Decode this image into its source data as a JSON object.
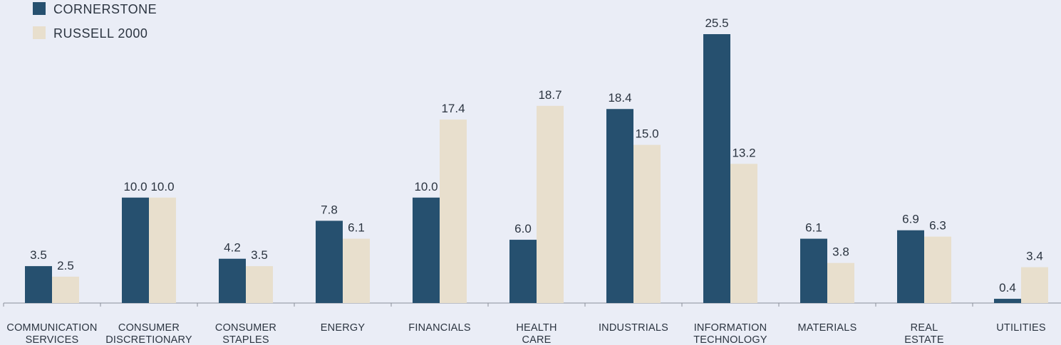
{
  "colors": {
    "cornerstone": "#26506f",
    "russell": "#e8dfcd",
    "axis": "#8a8f99",
    "text": "#2b3440"
  },
  "legend": [
    {
      "name": "CORNERSTONE",
      "color": "#26506f"
    },
    {
      "name": "RUSSELL 2000",
      "color": "#e8dfcd"
    }
  ],
  "chart_data": {
    "type": "bar",
    "title": "",
    "xlabel": "",
    "ylabel": "",
    "ylim": [
      0,
      25.5
    ],
    "grid": false,
    "legend_position": "top-left",
    "categories": [
      "COMMUNICATION SERVICES",
      "CONSUMER DISCRETIONARY",
      "CONSUMER STAPLES",
      "ENERGY",
      "FINANCIALS",
      "HEALTH CARE",
      "INDUSTRIALS",
      "INFORMATION TECHNOLOGY",
      "MATERIALS",
      "REAL ESTATE",
      "UTILITIES"
    ],
    "series": [
      {
        "name": "CORNERSTONE",
        "values": [
          3.5,
          10.0,
          4.2,
          7.8,
          10.0,
          6.0,
          18.4,
          25.5,
          6.1,
          6.9,
          0.4
        ]
      },
      {
        "name": "RUSSELL 2000",
        "values": [
          2.5,
          10.0,
          3.5,
          6.1,
          17.4,
          18.7,
          15.0,
          13.2,
          3.8,
          6.3,
          3.4
        ]
      }
    ]
  }
}
